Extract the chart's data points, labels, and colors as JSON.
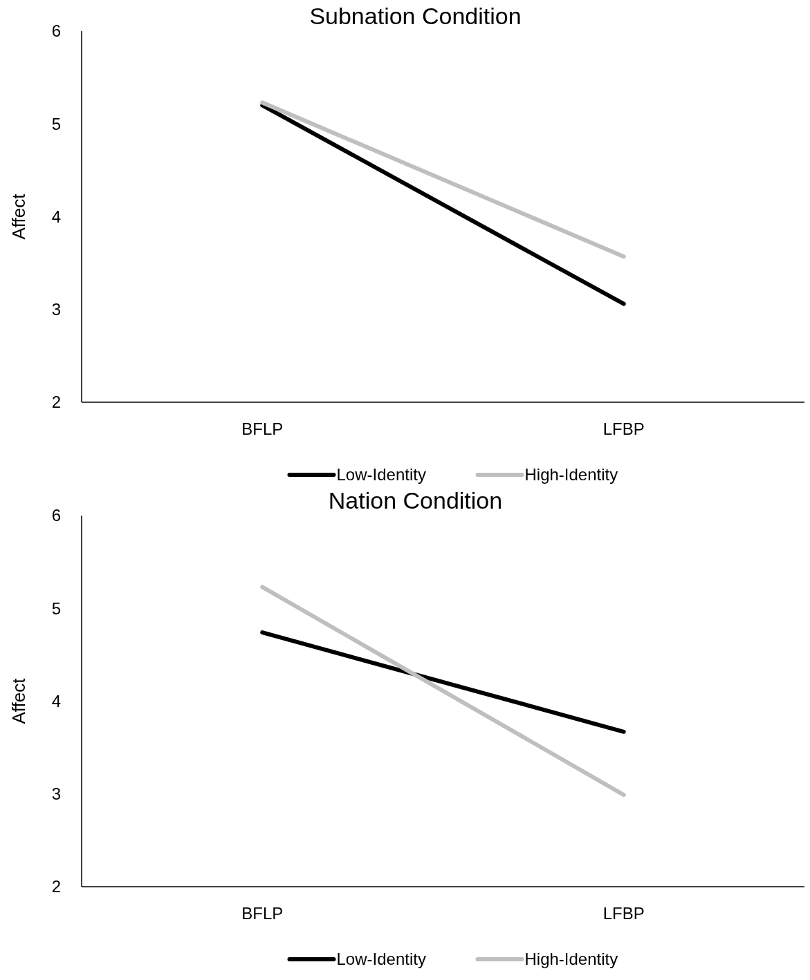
{
  "chart_data": [
    {
      "type": "line",
      "title": "Subnation Condition",
      "ylabel": "Affect",
      "categories": [
        "BFLP",
        "LFBP"
      ],
      "ylim": [
        2,
        6
      ],
      "yticks": [
        2,
        3,
        4,
        5,
        6
      ],
      "grid": false,
      "legend": "bottom",
      "marker": "none",
      "line_style": "solid",
      "series": [
        {
          "name": "Low-Identity",
          "color": "#000000",
          "values": [
            5.2,
            3.06
          ]
        },
        {
          "name": "High-Identity",
          "color": "#bfbfbf",
          "values": [
            5.23,
            3.57
          ]
        }
      ]
    },
    {
      "type": "line",
      "title": "Nation Condition",
      "ylabel": "Affect",
      "categories": [
        "BFLP",
        "LFBP"
      ],
      "ylim": [
        2,
        6
      ],
      "yticks": [
        2,
        3,
        4,
        5,
        6
      ],
      "grid": false,
      "legend": "bottom",
      "marker": "none",
      "line_style": "solid",
      "series": [
        {
          "name": "Low-Identity",
          "color": "#000000",
          "values": [
            4.74,
            3.67
          ]
        },
        {
          "name": "High-Identity",
          "color": "#bfbfbf",
          "values": [
            5.23,
            2.99
          ]
        }
      ]
    }
  ]
}
